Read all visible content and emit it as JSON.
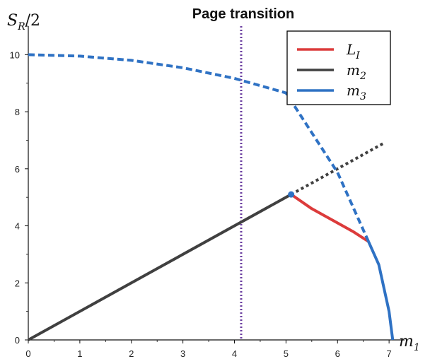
{
  "chart_data": {
    "type": "line",
    "title": "Page transition",
    "ylabel": "S_R/2",
    "xlabel": "m_1",
    "xlim": [
      0,
      7.3
    ],
    "ylim": [
      0,
      11
    ],
    "xticks": [
      0,
      1,
      2,
      3,
      4,
      5,
      6,
      7
    ],
    "yticks": [
      0,
      2,
      4,
      6,
      8,
      10
    ],
    "grid": false,
    "legend_position": "top-right",
    "colors": {
      "L_I": "#dc3b3b",
      "m2": "#404040",
      "m3": "#2f72c4",
      "vline": "#6b3fa0"
    },
    "legend": [
      {
        "series": "L_I",
        "label_main": "L",
        "label_sub": "I"
      },
      {
        "series": "m2",
        "label_main": "m",
        "label_sub": "2"
      },
      {
        "series": "m3",
        "label_main": "m",
        "label_sub": "3"
      }
    ],
    "page_transition_x": 4.13,
    "series": [
      {
        "name": "L_I",
        "style": "solid",
        "x": [
          5.1,
          5.5,
          6.0,
          6.3,
          6.6
        ],
        "y": [
          5.1,
          4.6,
          4.1,
          3.8,
          3.45
        ]
      },
      {
        "name": "m2",
        "style": "solid",
        "x": [
          0,
          5.1
        ],
        "y": [
          0,
          5.1
        ]
      },
      {
        "name": "m2",
        "style": "dotted",
        "x": [
          5.1,
          6.9
        ],
        "y": [
          5.1,
          6.9
        ]
      },
      {
        "name": "m3",
        "style": "dashed",
        "x": [
          0,
          1,
          2,
          3,
          4,
          5,
          6,
          6.6
        ],
        "y": [
          10,
          9.95,
          9.8,
          9.54,
          9.17,
          8.66,
          5.87,
          3.45
        ]
      },
      {
        "name": "m3",
        "style": "solid",
        "x": [
          6.6,
          6.8,
          7.0,
          7.071
        ],
        "y": [
          3.45,
          2.64,
          1.0,
          0
        ]
      }
    ]
  }
}
